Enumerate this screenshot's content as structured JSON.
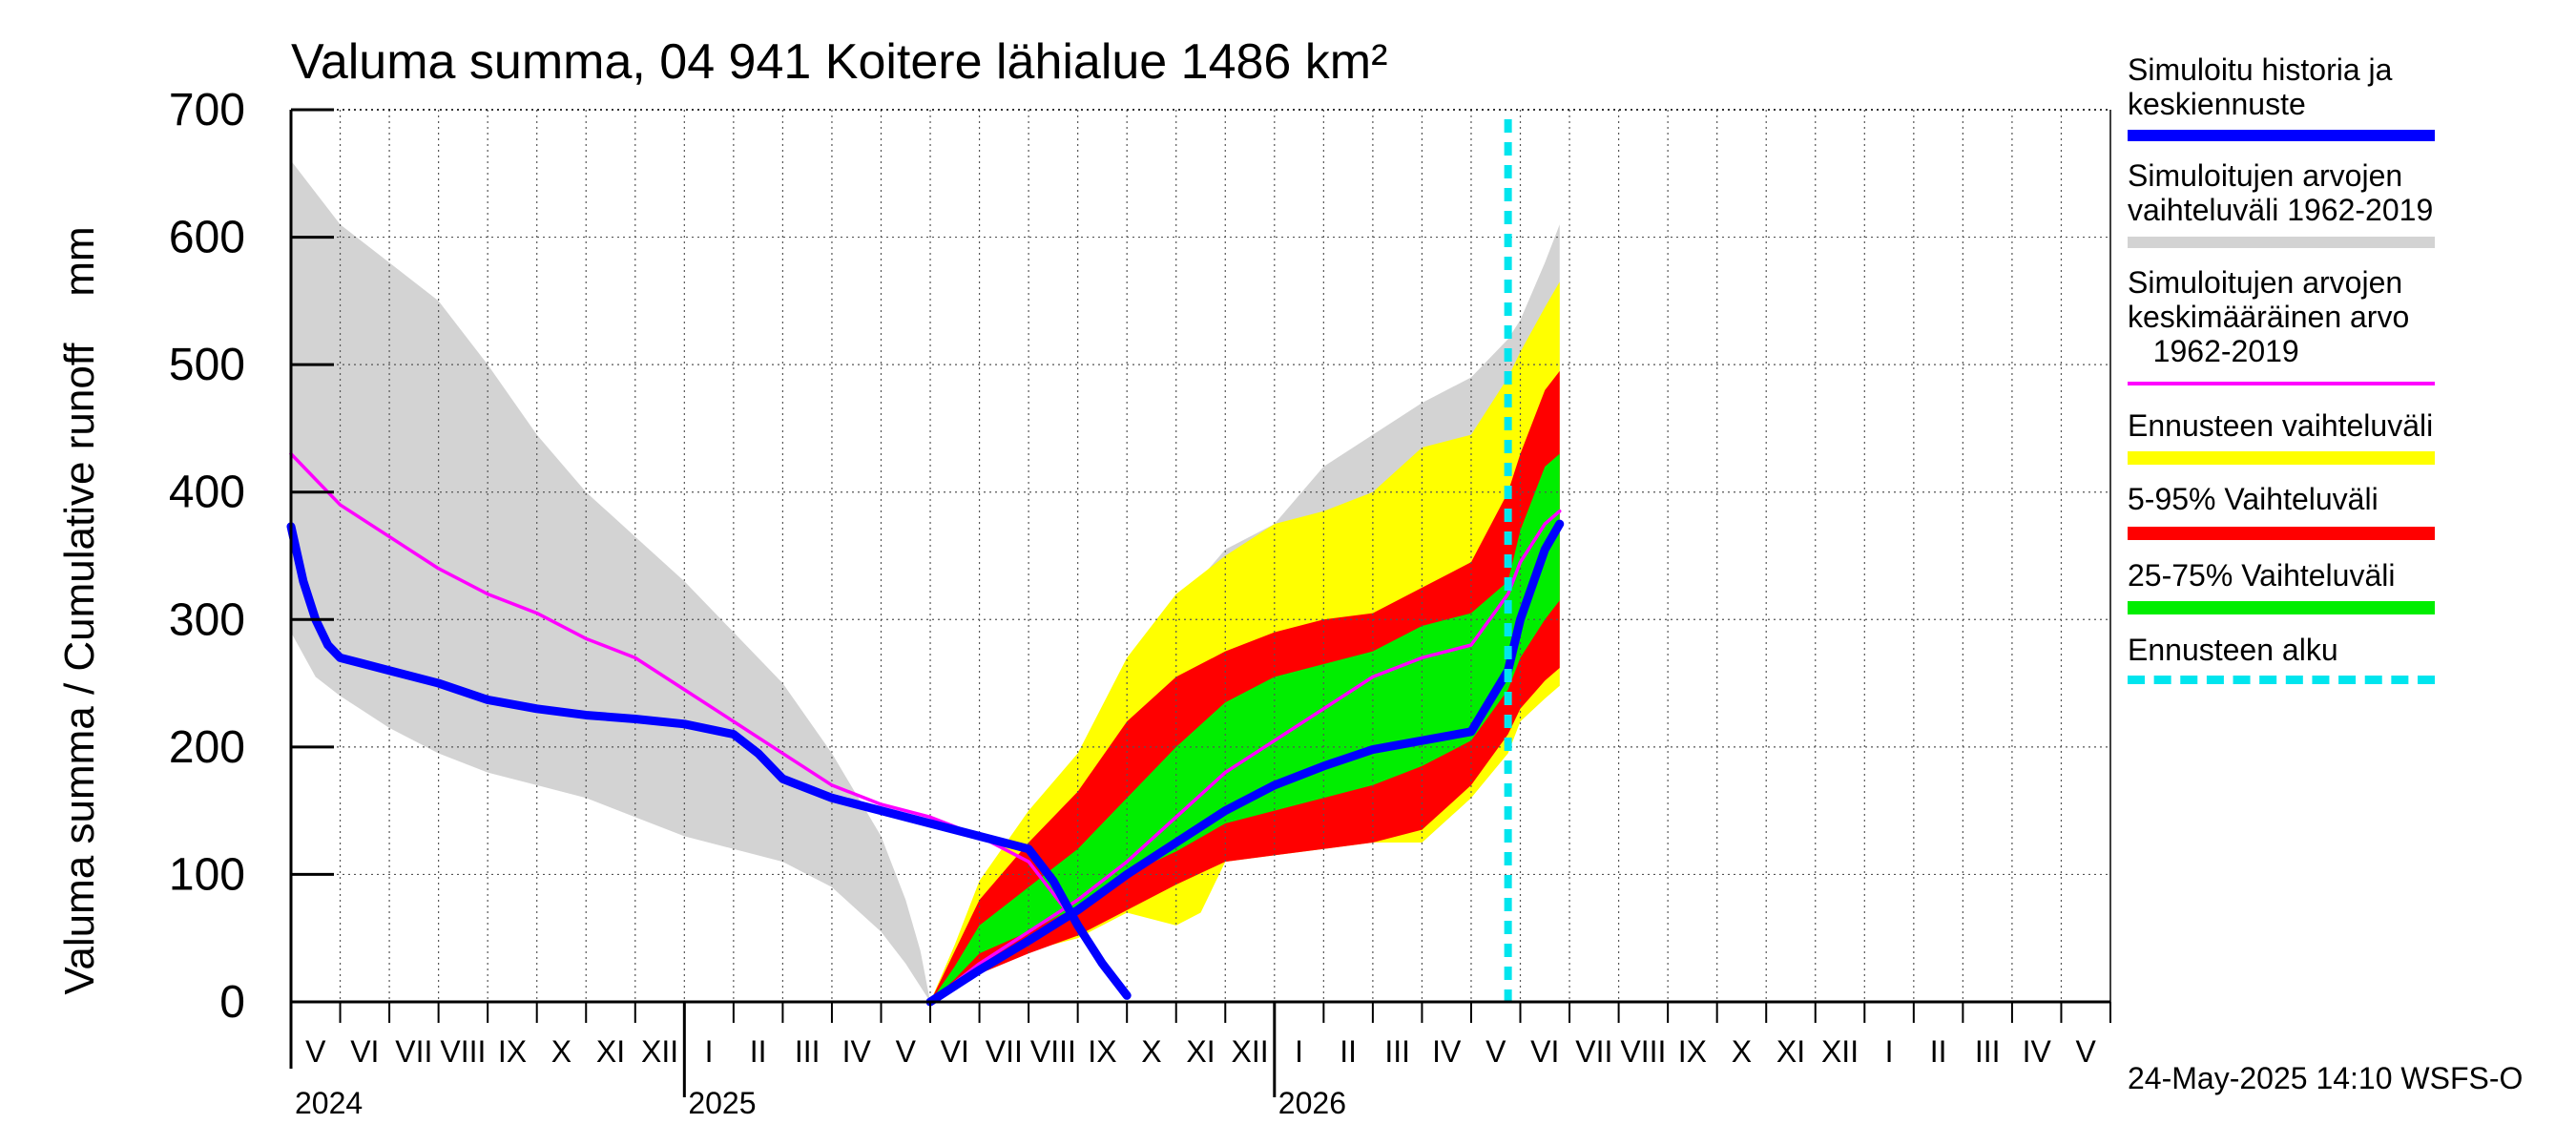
{
  "chart_data": {
    "type": "area",
    "title": "Valuma summa, 04 941 Koitere lähialue 1486 km²",
    "ylabel": "Valuma summa / Cumulative runoff    mm",
    "xlabel": "",
    "ylim": [
      0,
      700
    ],
    "yticks": [
      0,
      100,
      200,
      300,
      400,
      500,
      600,
      700
    ],
    "grid": true,
    "x_unit": "months since 2024-05-01 (0 = 1 May 2024, 24.75 = 24 May 2025, 37 = end of May 2026)",
    "xlim": [
      0,
      37
    ],
    "forecast_start_x": 24.75,
    "month_labels": [
      {
        "label": "V",
        "x": 0.5
      },
      {
        "label": "VI",
        "x": 1.5
      },
      {
        "label": "VII",
        "x": 2.5
      },
      {
        "label": "VIII",
        "x": 3.5
      },
      {
        "label": "IX",
        "x": 4.5
      },
      {
        "label": "X",
        "x": 5.5
      },
      {
        "label": "XI",
        "x": 6.5
      },
      {
        "label": "XII",
        "x": 7.5
      },
      {
        "label": "I",
        "x": 8.5
      },
      {
        "label": "II",
        "x": 9.5
      },
      {
        "label": "III",
        "x": 10.5
      },
      {
        "label": "IV",
        "x": 11.5
      },
      {
        "label": "V",
        "x": 12.5
      },
      {
        "label": "VI",
        "x": 13.5
      },
      {
        "label": "VII",
        "x": 14.5
      },
      {
        "label": "VIII",
        "x": 15.5
      },
      {
        "label": "IX",
        "x": 16.5
      },
      {
        "label": "X",
        "x": 17.5
      },
      {
        "label": "XI",
        "x": 18.5
      },
      {
        "label": "XII",
        "x": 19.5
      },
      {
        "label": "I",
        "x": 20.5
      },
      {
        "label": "II",
        "x": 21.5
      },
      {
        "label": "III",
        "x": 22.5
      },
      {
        "label": "IV",
        "x": 23.5
      },
      {
        "label": "V",
        "x": 24.5
      },
      {
        "label": "VI",
        "x": 25.5
      },
      {
        "label": "VII",
        "x": 26.5
      },
      {
        "label": "VIII",
        "x": 27.5
      },
      {
        "label": "IX",
        "x": 28.5
      },
      {
        "label": "X",
        "x": 29.5
      },
      {
        "label": "XI",
        "x": 30.5
      },
      {
        "label": "XII",
        "x": 31.5
      },
      {
        "label": "I",
        "x": 32.5
      },
      {
        "label": "II",
        "x": 33.5
      },
      {
        "label": "III",
        "x": 34.5
      },
      {
        "label": "IV",
        "x": 35.5
      },
      {
        "label": "V",
        "x": 36.5
      }
    ],
    "year_labels": [
      {
        "label": "2024",
        "x": 0
      },
      {
        "label": "2025",
        "x": 8
      },
      {
        "label": "2026",
        "x": 20
      }
    ],
    "year_boundaries_x": [
      8,
      20
    ],
    "series": [
      {
        "name": "Simuloitujen arvojen vaihteluväli 1962-2019",
        "kind": "band",
        "color": "#d3d3d3",
        "upper": [
          [
            0,
            660
          ],
          [
            1,
            610
          ],
          [
            2,
            580
          ],
          [
            3,
            550
          ],
          [
            4,
            500
          ],
          [
            5,
            445
          ],
          [
            6,
            400
          ],
          [
            7,
            365
          ],
          [
            8,
            330
          ],
          [
            9,
            290
          ],
          [
            10,
            250
          ],
          [
            11,
            195
          ],
          [
            12,
            130
          ],
          [
            12.5,
            80
          ],
          [
            12.8,
            40
          ],
          [
            13,
            0
          ],
          [
            13.5,
            40
          ],
          [
            14,
            70
          ],
          [
            15,
            110
          ],
          [
            16,
            160
          ],
          [
            17,
            230
          ],
          [
            18,
            310
          ],
          [
            19,
            355
          ],
          [
            20,
            375
          ],
          [
            21,
            420
          ],
          [
            22,
            445
          ],
          [
            23,
            470
          ],
          [
            24,
            490
          ],
          [
            24.75,
            520
          ],
          [
            25,
            535
          ],
          [
            25.5,
            580
          ],
          [
            25.8,
            610
          ]
        ],
        "lower": [
          [
            0,
            290
          ],
          [
            0.5,
            255
          ],
          [
            1,
            240
          ],
          [
            2,
            215
          ],
          [
            3,
            195
          ],
          [
            4,
            180
          ],
          [
            5,
            170
          ],
          [
            6,
            160
          ],
          [
            7,
            145
          ],
          [
            8,
            130
          ],
          [
            9,
            120
          ],
          [
            10,
            110
          ],
          [
            11,
            90
          ],
          [
            12,
            55
          ],
          [
            12.5,
            30
          ],
          [
            13,
            0
          ],
          [
            14,
            25
          ],
          [
            15,
            40
          ],
          [
            16,
            60
          ],
          [
            17,
            80
          ],
          [
            18,
            100
          ],
          [
            19,
            110
          ],
          [
            20,
            115
          ],
          [
            21,
            120
          ],
          [
            22,
            125
          ],
          [
            23,
            125
          ],
          [
            24,
            160
          ],
          [
            24.75,
            200
          ],
          [
            25,
            225
          ],
          [
            25.5,
            240
          ],
          [
            25.8,
            248
          ]
        ]
      },
      {
        "name": "Ennusteen vaihteluväli",
        "kind": "band",
        "color": "#ffff00",
        "upper": [
          [
            13,
            0
          ],
          [
            13.5,
            45
          ],
          [
            14,
            95
          ],
          [
            15,
            150
          ],
          [
            16,
            195
          ],
          [
            17,
            270
          ],
          [
            18,
            320
          ],
          [
            19,
            350
          ],
          [
            20,
            375
          ],
          [
            21,
            385
          ],
          [
            22,
            400
          ],
          [
            23,
            435
          ],
          [
            24,
            445
          ],
          [
            24.75,
            490
          ],
          [
            25,
            510
          ],
          [
            25.5,
            545
          ],
          [
            25.8,
            565
          ]
        ],
        "lower": [
          [
            13,
            0
          ],
          [
            13.5,
            15
          ],
          [
            14,
            25
          ],
          [
            15,
            40
          ],
          [
            16,
            50
          ],
          [
            17,
            70
          ],
          [
            18,
            60
          ],
          [
            18.5,
            70
          ],
          [
            19,
            110
          ],
          [
            20,
            115
          ],
          [
            21,
            120
          ],
          [
            22,
            125
          ],
          [
            23,
            125
          ],
          [
            24,
            160
          ],
          [
            24.75,
            195
          ],
          [
            25,
            220
          ],
          [
            25.5,
            238
          ],
          [
            25.8,
            248
          ]
        ]
      },
      {
        "name": "5-95% Vaihteluväli",
        "kind": "band",
        "color": "#ff0000",
        "upper": [
          [
            13,
            0
          ],
          [
            13.5,
            40
          ],
          [
            14,
            80
          ],
          [
            15,
            125
          ],
          [
            16,
            165
          ],
          [
            17,
            220
          ],
          [
            18,
            255
          ],
          [
            19,
            275
          ],
          [
            20,
            290
          ],
          [
            21,
            300
          ],
          [
            22,
            305
          ],
          [
            23,
            325
          ],
          [
            24,
            345
          ],
          [
            24.75,
            400
          ],
          [
            25,
            430
          ],
          [
            25.5,
            480
          ],
          [
            25.8,
            495
          ]
        ],
        "lower": [
          [
            13,
            0
          ],
          [
            13.5,
            12
          ],
          [
            14,
            22
          ],
          [
            15,
            38
          ],
          [
            16,
            52
          ],
          [
            17,
            72
          ],
          [
            18,
            92
          ],
          [
            19,
            110
          ],
          [
            20,
            115
          ],
          [
            21,
            120
          ],
          [
            22,
            125
          ],
          [
            23,
            135
          ],
          [
            24,
            170
          ],
          [
            24.75,
            210
          ],
          [
            25,
            230
          ],
          [
            25.5,
            252
          ],
          [
            25.8,
            262
          ]
        ]
      },
      {
        "name": "25-75% Vaihteluväli",
        "kind": "band",
        "color": "#00ee00",
        "upper": [
          [
            13,
            0
          ],
          [
            13.5,
            28
          ],
          [
            14,
            60
          ],
          [
            15,
            90
          ],
          [
            16,
            120
          ],
          [
            17,
            160
          ],
          [
            18,
            200
          ],
          [
            19,
            235
          ],
          [
            20,
            255
          ],
          [
            21,
            265
          ],
          [
            22,
            275
          ],
          [
            23,
            295
          ],
          [
            24,
            305
          ],
          [
            24.75,
            330
          ],
          [
            25,
            370
          ],
          [
            25.5,
            420
          ],
          [
            25.8,
            430
          ]
        ],
        "lower": [
          [
            13,
            0
          ],
          [
            13.5,
            18
          ],
          [
            14,
            38
          ],
          [
            15,
            55
          ],
          [
            16,
            75
          ],
          [
            17,
            100
          ],
          [
            18,
            118
          ],
          [
            19,
            140
          ],
          [
            20,
            150
          ],
          [
            21,
            160
          ],
          [
            22,
            170
          ],
          [
            23,
            185
          ],
          [
            24,
            205
          ],
          [
            24.75,
            245
          ],
          [
            25,
            270
          ],
          [
            25.5,
            300
          ],
          [
            25.8,
            315
          ]
        ]
      },
      {
        "name": "Simuloitujen arvojen keskimääräinen arvo 1962-2019",
        "kind": "line",
        "color": "#ff00ff",
        "points": [
          [
            0,
            430
          ],
          [
            0.5,
            410
          ],
          [
            1,
            390
          ],
          [
            2,
            365
          ],
          [
            3,
            340
          ],
          [
            4,
            320
          ],
          [
            5,
            305
          ],
          [
            6,
            285
          ],
          [
            7,
            270
          ],
          [
            8,
            245
          ],
          [
            9,
            220
          ],
          [
            10,
            195
          ],
          [
            11,
            170
          ],
          [
            12,
            155
          ],
          [
            13,
            145
          ],
          [
            14,
            130
          ],
          [
            15,
            110
          ],
          [
            15.5,
            85
          ],
          [
            16,
            60
          ],
          [
            16.5,
            30
          ],
          [
            17,
            5
          ],
          [
            13,
            0
          ],
          [
            14,
            30
          ],
          [
            15,
            55
          ],
          [
            16,
            80
          ],
          [
            17,
            110
          ],
          [
            18,
            145
          ],
          [
            19,
            180
          ],
          [
            20,
            205
          ],
          [
            21,
            230
          ],
          [
            22,
            255
          ],
          [
            23,
            270
          ],
          [
            24,
            280
          ],
          [
            24.75,
            320
          ],
          [
            25,
            345
          ],
          [
            25.5,
            375
          ],
          [
            25.8,
            385
          ]
        ]
      },
      {
        "name": "Simuloitu historia ja keskiennuste",
        "kind": "line",
        "color": "#0000ff",
        "points": [
          [
            0,
            373
          ],
          [
            0.25,
            330
          ],
          [
            0.5,
            300
          ],
          [
            0.75,
            280
          ],
          [
            1,
            270
          ],
          [
            2,
            260
          ],
          [
            3,
            250
          ],
          [
            4,
            237
          ],
          [
            5,
            230
          ],
          [
            6,
            225
          ],
          [
            7,
            222
          ],
          [
            8,
            218
          ],
          [
            9,
            210
          ],
          [
            9.5,
            195
          ],
          [
            10,
            175
          ],
          [
            11,
            160
          ],
          [
            12,
            150
          ],
          [
            13,
            140
          ],
          [
            14,
            130
          ],
          [
            15,
            120
          ],
          [
            15.5,
            95
          ],
          [
            16,
            60
          ],
          [
            16.5,
            30
          ],
          [
            17,
            5
          ],
          [
            13,
            0
          ],
          [
            14,
            25
          ],
          [
            15,
            48
          ],
          [
            16,
            72
          ],
          [
            17,
            100
          ],
          [
            18,
            125
          ],
          [
            19,
            150
          ],
          [
            20,
            170
          ],
          [
            21,
            185
          ],
          [
            22,
            198
          ],
          [
            23,
            205
          ],
          [
            24,
            212
          ],
          [
            24.75,
            260
          ],
          [
            25,
            300
          ],
          [
            25.5,
            355
          ],
          [
            25.8,
            375
          ]
        ]
      }
    ]
  },
  "legend": {
    "items": [
      {
        "label": "Simuloitu historia ja\nkeskiennuste",
        "color": "#0000ff"
      },
      {
        "label": "Simuloitujen arvojen\nvaihteluväli 1962-2019",
        "color": "#d3d3d3"
      },
      {
        "label": "Simuloitujen arvojen\nkeskimääräinen arvo\n   1962-2019",
        "color": "#ff00ff"
      },
      {
        "label": "Ennusteen vaihteluväli",
        "color": "#ffff00"
      },
      {
        "label": "5-95% Vaihteluväli",
        "color": "#ff0000"
      },
      {
        "label": "25-75% Vaihteluväli",
        "color": "#00ee00"
      },
      {
        "label": "Ennusteen alku",
        "color": "#00e5ee"
      }
    ]
  },
  "footer": {
    "timestamp": "24-May-2025 14:10 WSFS-O"
  }
}
